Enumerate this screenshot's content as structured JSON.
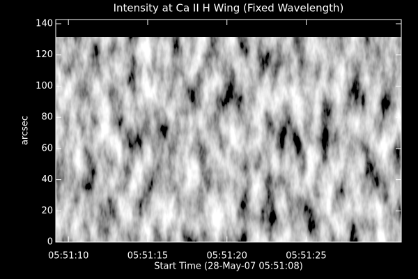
{
  "chart_data": {
    "type": "image",
    "title": "Intensity at Ca II H Wing (Fixed Wavelength)",
    "x_label": "Start Time (28-May-07 05:51:08)",
    "y_label": "arcsec",
    "xlim": [
      1.2,
      23.0
    ],
    "xticks": [
      {
        "value": 2,
        "label": "05:51:10"
      },
      {
        "value": 7,
        "label": "05:51:15"
      },
      {
        "value": 12,
        "label": "05:51:20"
      },
      {
        "value": 17,
        "label": "05:51:25"
      }
    ],
    "ylim": [
      0,
      142.7
    ],
    "yticks": [
      0,
      20,
      40,
      60,
      80,
      100,
      120,
      140
    ],
    "colormap": "gray"
  }
}
